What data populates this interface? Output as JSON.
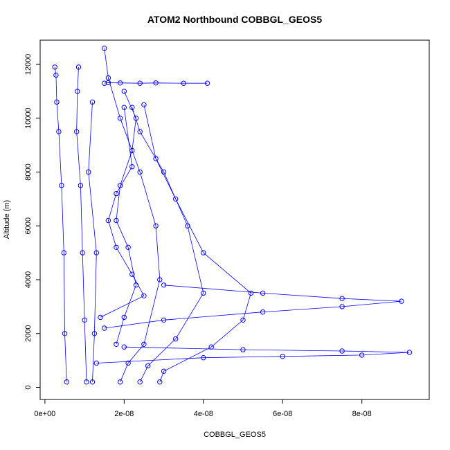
{
  "chart_data": {
    "type": "scatter",
    "title": "ATOM2 Northbound COBBGL_GEOS5",
    "xlabel": "COBBGL_GEOS5",
    "ylabel": "Altitude (m)",
    "xlim": [
      -1.2e-09,
      9.7e-08
    ],
    "ylim": [
      -450,
      12900
    ],
    "x_ticks": [
      {
        "value": 0,
        "label": "0e+00"
      },
      {
        "value": 2e-08,
        "label": "2e-08"
      },
      {
        "value": 4e-08,
        "label": "4e-08"
      },
      {
        "value": 6e-08,
        "label": "6e-08"
      },
      {
        "value": 8e-08,
        "label": "8e-08"
      }
    ],
    "y_ticks": [
      {
        "value": 0,
        "label": "0"
      },
      {
        "value": 2000,
        "label": "2000"
      },
      {
        "value": 4000,
        "label": "4000"
      },
      {
        "value": 6000,
        "label": "6000"
      },
      {
        "value": 8000,
        "label": "8000"
      },
      {
        "value": 10000,
        "label": "10000"
      },
      {
        "value": 12000,
        "label": "12000"
      }
    ],
    "color": "#0000ff",
    "marker": "open-circle",
    "connected": true,
    "series": [
      {
        "x": [
          5.5e-09,
          5e-09,
          4.8e-09,
          4.2e-09,
          3.5e-09,
          3e-09,
          2.8e-09,
          2.5e-09
        ],
        "y": [
          200,
          2000,
          5000,
          7500,
          9500,
          10600,
          11600,
          11900
        ]
      },
      {
        "x": [
          1.05e-08,
          1e-08,
          9.5e-09,
          9e-09,
          8e-09,
          8.2e-09,
          8.5e-09
        ],
        "y": [
          200,
          2500,
          5000,
          7500,
          9500,
          11000,
          11900
        ]
      },
      {
        "x": [
          1.2e-08,
          1.25e-08,
          1.3e-08,
          1.1e-08,
          1.2e-08
        ],
        "y": [
          200,
          2000,
          5000,
          8000,
          10600
        ]
      },
      {
        "x": [
          1.9e-08,
          2.1e-08,
          2.5e-08,
          2.9e-08,
          2.8e-08,
          2.4e-08,
          1.9e-08,
          1.6e-08,
          1.5e-08
        ],
        "y": [
          200,
          900,
          1600,
          4000,
          6000,
          8000,
          10000,
          11500,
          12600
        ]
      },
      {
        "x": [
          2.4e-08,
          2.6e-08,
          3.3e-08,
          4e-08,
          3.6e-08,
          3e-08,
          2.4e-08,
          2.2e-08
        ],
        "y": [
          200,
          800,
          1800,
          3500,
          6000,
          8000,
          9500,
          10400
        ]
      },
      {
        "x": [
          2.9e-08,
          3e-08,
          4.2e-08,
          5e-08,
          5.2e-08,
          4e-08,
          3.3e-08,
          2.8e-08,
          2.5e-08
        ],
        "y": [
          200,
          600,
          1500,
          2500,
          3500,
          5000,
          7000,
          8500,
          10500
        ]
      },
      {
        "x": [
          1.3e-08,
          4e-08,
          6e-08,
          8e-08,
          9.2e-08,
          7.5e-08,
          5e-08,
          2e-08
        ],
        "y": [
          900,
          1100,
          1150,
          1200,
          1300,
          1350,
          1400,
          1500
        ]
      },
      {
        "x": [
          1.5e-08,
          3e-08,
          5.5e-08,
          7.5e-08,
          9e-08,
          7.5e-08,
          5.5e-08,
          3e-08
        ],
        "y": [
          2200,
          2500,
          2800,
          3000,
          3200,
          3300,
          3500,
          3800
        ]
      },
      {
        "x": [
          1.4e-08,
          2.5e-08,
          2.2e-08,
          1.8e-08,
          1.6e-08,
          1.8e-08,
          2.2e-08,
          2e-08
        ],
        "y": [
          2600,
          3400,
          4200,
          5200,
          6200,
          7200,
          8200,
          10400
        ]
      },
      {
        "x": [
          1.8e-08,
          2e-08,
          2.3e-08,
          2.1e-08,
          1.8e-08,
          1.9e-08,
          2.2e-08,
          2.3e-08,
          2e-08
        ],
        "y": [
          1600,
          2600,
          3800,
          5200,
          6200,
          7500,
          8800,
          10000,
          11000
        ]
      },
      {
        "x": [
          1.5e-08,
          1.6e-08,
          1.9e-08,
          2.4e-08,
          2.8e-08,
          3.5e-08,
          4.1e-08
        ],
        "y": [
          11300,
          11320,
          11310,
          11300,
          11310,
          11300,
          11300
        ]
      }
    ]
  }
}
